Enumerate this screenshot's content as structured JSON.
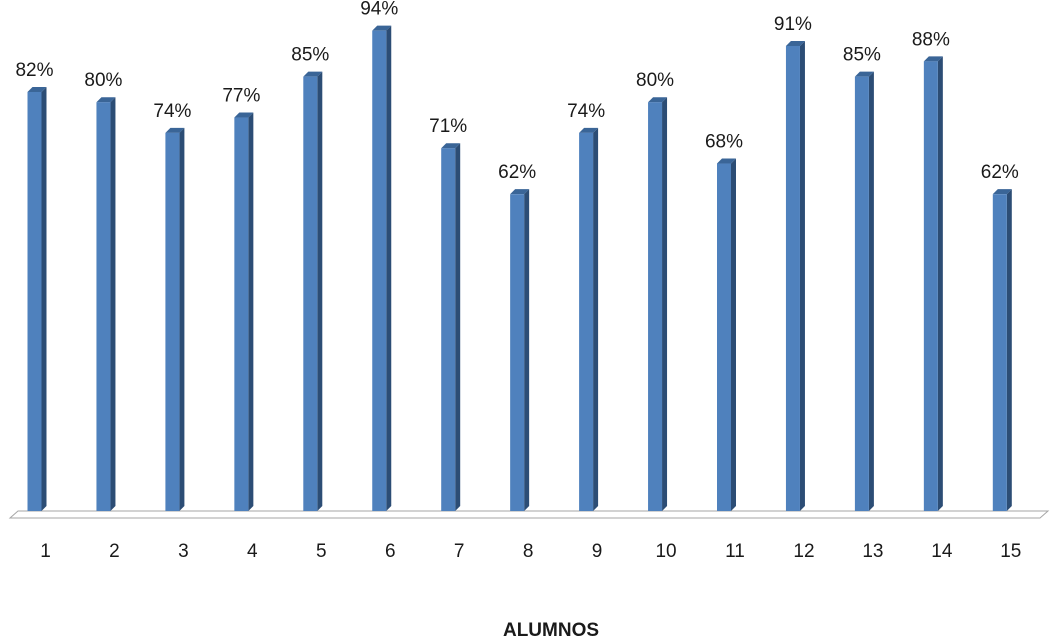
{
  "chart_data": {
    "type": "bar",
    "categories": [
      "1",
      "2",
      "3",
      "4",
      "5",
      "6",
      "7",
      "8",
      "9",
      "10",
      "11",
      "12",
      "13",
      "14",
      "15"
    ],
    "values": [
      82,
      80,
      74,
      77,
      85,
      94,
      71,
      62,
      74,
      80,
      68,
      91,
      85,
      88,
      62
    ],
    "value_labels": [
      "82%",
      "80%",
      "74%",
      "77%",
      "85%",
      "94%",
      "71%",
      "62%",
      "74%",
      "80%",
      "68%",
      "91%",
      "85%",
      "88%",
      "62%"
    ],
    "title": "",
    "xlabel": "ALUMNOS",
    "ylabel": "",
    "ylim": [
      0,
      100
    ],
    "grid": false,
    "legend": "none",
    "colors": {
      "bar_front": "#4f81bd",
      "bar_side": "#2c4d75",
      "bar_top": "#3a6597",
      "floor_fill": "#ffffff",
      "floor_stroke": "#a6a6a6"
    }
  }
}
